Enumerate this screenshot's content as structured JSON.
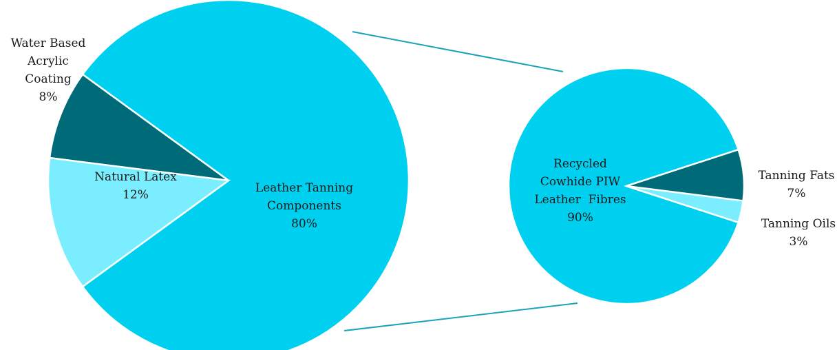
{
  "colors": {
    "main": "#00d0f0",
    "dark": "#006b78",
    "light": "#7aeeff",
    "connector": "#1aa3b8"
  },
  "chart_data": [
    {
      "type": "pie",
      "title": "",
      "start_angle_deg": 0,
      "direction": "counterclockwise",
      "slices": [
        {
          "name": "Leather Tanning Components",
          "lines": [
            "Leather Tanning",
            "Components",
            "80%"
          ],
          "value": 80,
          "color_key": "main"
        },
        {
          "name": "Water Based Acrylic Coating",
          "lines": [
            "Water Based",
            "Acrylic",
            "Coating",
            "8%"
          ],
          "value": 8,
          "color_key": "dark"
        },
        {
          "name": "Natural Latex",
          "lines": [
            "Natural Latex",
            "12%"
          ],
          "value": 12,
          "color_key": "light"
        }
      ],
      "legend": "none"
    },
    {
      "type": "pie",
      "title": "",
      "start_angle_deg": 0,
      "direction": "counterclockwise",
      "slices": [
        {
          "name": "Recycled Cowhide PIW Leather Fibres",
          "lines": [
            "Recycled",
            "Cowhide PIW",
            "Leather  Fibres",
            "90%"
          ],
          "value": 90,
          "color_key": "main"
        },
        {
          "name": "Tanning Oils",
          "lines": [
            "Tanning Oils",
            "3%"
          ],
          "value": 3,
          "color_key": "light"
        },
        {
          "name": "Tanning Fats",
          "lines": [
            "Tanning Fats",
            "7%"
          ],
          "value": 7,
          "color_key": "dark"
        }
      ],
      "legend": "none"
    }
  ]
}
